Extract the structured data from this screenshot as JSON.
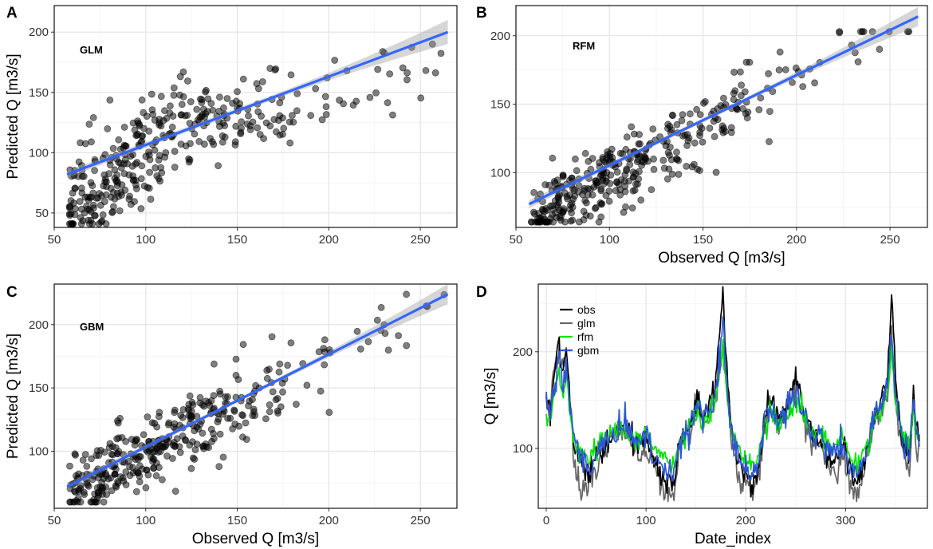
{
  "colors": {
    "points": "#000000",
    "fit_line": "#3366ff",
    "confidence_band": "#999999",
    "obs": "#000000",
    "glm": "#666666",
    "rfm": "#00e600",
    "gbm": "#2a56d6"
  },
  "chart_data": [
    {
      "panel": "A",
      "type": "scatter",
      "model_label": "GLM",
      "xlabel": "",
      "ylabel": "Predicted Q [m3/s]",
      "xlim": [
        50,
        270
      ],
      "ylim": [
        38,
        222
      ],
      "xticks": [
        "50",
        "100",
        "150",
        "200",
        "250"
      ],
      "yticks": [
        "50",
        "100",
        "150",
        "200"
      ],
      "fit": {
        "x": [
          57,
          265
        ],
        "y": [
          82,
          200
        ],
        "se_ends": [
          3,
          10
        ],
        "se_mid": 2
      },
      "points_seed": 11,
      "points_model": {
        "type": "glm",
        "n": 365
      }
    },
    {
      "panel": "B",
      "type": "scatter",
      "model_label": "RFM",
      "xlabel": "Observed Q [m3/s]",
      "ylabel": "",
      "xlim": [
        50,
        270
      ],
      "ylim": [
        60,
        222
      ],
      "xticks": [
        "50",
        "100",
        "150",
        "200",
        "250"
      ],
      "yticks": [
        "100",
        "150",
        "200"
      ],
      "fit": {
        "x": [
          57,
          265
        ],
        "y": [
          77,
          214
        ],
        "se_ends": [
          3,
          7
        ],
        "se_mid": 1.5
      },
      "points_seed": 23,
      "points_model": {
        "type": "rfm",
        "n": 365
      }
    },
    {
      "panel": "C",
      "type": "scatter",
      "model_label": "GBM",
      "xlabel": "Observed Q [m3/s]",
      "ylabel": "Predicted Q [m3/s]",
      "xlim": [
        50,
        270
      ],
      "ylim": [
        55,
        232
      ],
      "xticks": [
        "50",
        "100",
        "150",
        "200",
        "250"
      ],
      "yticks": [
        "100",
        "150",
        "200"
      ],
      "fit": {
        "x": [
          57,
          265
        ],
        "y": [
          72,
          224
        ],
        "se_ends": [
          3,
          8
        ],
        "se_mid": 1.5
      },
      "points_seed": 37,
      "points_model": {
        "type": "gbm",
        "n": 365
      }
    },
    {
      "panel": "D",
      "type": "line",
      "xlabel": "Date_index",
      "ylabel": "Q [m3/s]",
      "xlim": [
        -8,
        382
      ],
      "ylim": [
        38,
        270
      ],
      "xticks": [
        "0",
        "100",
        "200",
        "300"
      ],
      "yticks": [
        "100",
        "200"
      ],
      "n_points": 375,
      "legend": [
        "obs",
        "glm",
        "rfm",
        "gbm"
      ],
      "legend_position": "top-left",
      "obs_anchors": [
        [
          0,
          150
        ],
        [
          4,
          128
        ],
        [
          8,
          175
        ],
        [
          12,
          212
        ],
        [
          16,
          180
        ],
        [
          20,
          205
        ],
        [
          24,
          150
        ],
        [
          28,
          100
        ],
        [
          36,
          88
        ],
        [
          42,
          68
        ],
        [
          50,
          92
        ],
        [
          60,
          102
        ],
        [
          70,
          115
        ],
        [
          80,
          128
        ],
        [
          88,
          105
        ],
        [
          95,
          108
        ],
        [
          100,
          118
        ],
        [
          106,
          92
        ],
        [
          112,
          85
        ],
        [
          116,
          70
        ],
        [
          120,
          72
        ],
        [
          124,
          64
        ],
        [
          128,
          60
        ],
        [
          132,
          96
        ],
        [
          140,
          116
        ],
        [
          146,
          128
        ],
        [
          152,
          150
        ],
        [
          158,
          132
        ],
        [
          164,
          148
        ],
        [
          170,
          168
        ],
        [
          174,
          220
        ],
        [
          177,
          262
        ],
        [
          180,
          200
        ],
        [
          184,
          132
        ],
        [
          188,
          108
        ],
        [
          194,
          82
        ],
        [
          200,
          72
        ],
        [
          206,
          60
        ],
        [
          212,
          72
        ],
        [
          218,
          126
        ],
        [
          224,
          150
        ],
        [
          232,
          132
        ],
        [
          240,
          140
        ],
        [
          246,
          158
        ],
        [
          252,
          172
        ],
        [
          258,
          140
        ],
        [
          262,
          128
        ],
        [
          268,
          112
        ],
        [
          276,
          108
        ],
        [
          286,
          88
        ],
        [
          292,
          92
        ],
        [
          298,
          102
        ],
        [
          306,
          68
        ],
        [
          312,
          62
        ],
        [
          320,
          90
        ],
        [
          328,
          130
        ],
        [
          336,
          152
        ],
        [
          342,
          176
        ],
        [
          346,
          258
        ],
        [
          350,
          168
        ],
        [
          356,
          110
        ],
        [
          364,
          90
        ],
        [
          368,
          152
        ],
        [
          372,
          112
        ],
        [
          374,
          110
        ]
      ],
      "glm_anchors": [
        [
          0,
          150
        ],
        [
          4,
          150
        ],
        [
          8,
          180
        ],
        [
          12,
          200
        ],
        [
          16,
          195
        ],
        [
          20,
          195
        ],
        [
          24,
          150
        ],
        [
          28,
          82
        ],
        [
          36,
          55
        ],
        [
          42,
          58
        ],
        [
          50,
          80
        ],
        [
          60,
          98
        ],
        [
          70,
          120
        ],
        [
          80,
          118
        ],
        [
          88,
          98
        ],
        [
          95,
          95
        ],
        [
          100,
          100
        ],
        [
          106,
          85
        ],
        [
          112,
          75
        ],
        [
          116,
          58
        ],
        [
          120,
          58
        ],
        [
          124,
          52
        ],
        [
          128,
          52
        ],
        [
          132,
          92
        ],
        [
          140,
          118
        ],
        [
          146,
          122
        ],
        [
          152,
          140
        ],
        [
          158,
          130
        ],
        [
          164,
          140
        ],
        [
          170,
          150
        ],
        [
          174,
          175
        ],
        [
          177,
          215
        ],
        [
          180,
          175
        ],
        [
          184,
          125
        ],
        [
          188,
          95
        ],
        [
          194,
          68
        ],
        [
          200,
          60
        ],
        [
          206,
          54
        ],
        [
          212,
          62
        ],
        [
          218,
          122
        ],
        [
          224,
          145
        ],
        [
          232,
          128
        ],
        [
          240,
          132
        ],
        [
          246,
          150
        ],
        [
          252,
          160
        ],
        [
          258,
          128
        ],
        [
          262,
          118
        ],
        [
          268,
          100
        ],
        [
          276,
          98
        ],
        [
          286,
          75
        ],
        [
          292,
          75
        ],
        [
          298,
          92
        ],
        [
          306,
          58
        ],
        [
          312,
          52
        ],
        [
          320,
          82
        ],
        [
          328,
          125
        ],
        [
          336,
          142
        ],
        [
          342,
          155
        ],
        [
          346,
          215
        ],
        [
          350,
          150
        ],
        [
          356,
          100
        ],
        [
          364,
          80
        ],
        [
          368,
          140
        ],
        [
          372,
          100
        ],
        [
          374,
          105
        ]
      ]
    }
  ]
}
